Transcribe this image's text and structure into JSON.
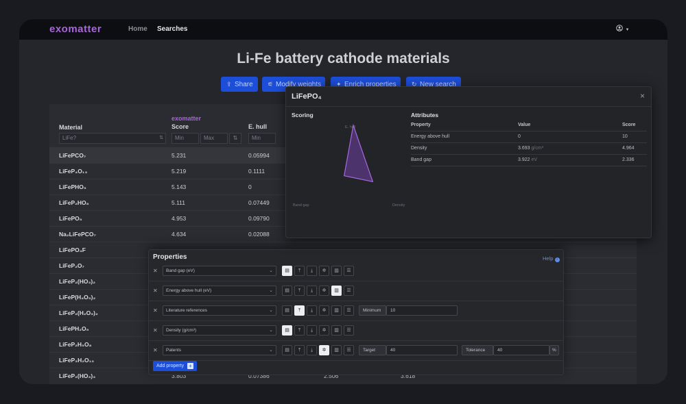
{
  "nav": {
    "logo": "exomatter",
    "links": [
      "Home",
      "Searches"
    ],
    "user_icon": "user-circle-icon",
    "user_caret": "▾"
  },
  "page": {
    "title": "Li-Fe battery cathode materials"
  },
  "toolbar": {
    "buttons": [
      {
        "label": "Share",
        "icon": "share-icon"
      },
      {
        "label": "Modify weights",
        "icon": "sliders-icon"
      },
      {
        "label": "Enrich properties",
        "icon": "sparkle-icon"
      },
      {
        "label": "New search",
        "icon": "refresh-icon"
      }
    ]
  },
  "table": {
    "headers": {
      "material": "Material",
      "score_brand": "exomatter",
      "score": "Score",
      "ehull": "E. hull"
    },
    "filters": {
      "material_placeholder": "LiFe?",
      "min": "Min",
      "max": "Max"
    },
    "rows": [
      {
        "material": "LiFePCO₇",
        "score": "5.231",
        "ehull": "0.05994"
      },
      {
        "material": "LiFeP₄O₁₃",
        "score": "5.219",
        "ehull": "0.1111"
      },
      {
        "material": "LiFePHO₅",
        "score": "5.143",
        "ehull": "0"
      },
      {
        "material": "LiFeP₂HO₈",
        "score": "5.111",
        "ehull": "0.07449"
      },
      {
        "material": "LiFePO₅",
        "score": "4.953",
        "ehull": "0.09790"
      },
      {
        "material": "Na₂LiFePCO₇",
        "score": "4.634",
        "ehull": "0.02088"
      },
      {
        "material": "LiFePO₄F",
        "score": "",
        "ehull": ""
      },
      {
        "material": "LiFeP₂O₇",
        "score": "",
        "ehull": ""
      },
      {
        "material": "LiFeP₂(HO₃)₂",
        "score": "",
        "ehull": ""
      },
      {
        "material": "LiFeP(H₄O₅)₂",
        "score": "",
        "ehull": ""
      },
      {
        "material": "LiFeP₂(H₂O₅)₂",
        "score": "",
        "ehull": ""
      },
      {
        "material": "LiFePH₂O₅",
        "score": "",
        "ehull": ""
      },
      {
        "material": "LiFeP₂H₅O₈",
        "score": "",
        "ehull": ""
      },
      {
        "material": "LiFeP₃H₂O₁₃",
        "score": "",
        "ehull": ""
      },
      {
        "material": "LiFeP₂(HO₃)₃",
        "score": "3.803",
        "ehull": "0.07386",
        "col4": "2.506",
        "col5": "3.618"
      }
    ]
  },
  "modal": {
    "title": "LiFePO₄",
    "close": "×",
    "scoring_title": "Scoring",
    "attributes_title": "Attributes",
    "radar_labels": {
      "top": "E. hull",
      "left": "Band gap",
      "right": "Density"
    },
    "radar_values": {
      "energy_above_hull": 10,
      "density": 4.964,
      "band_gap": 2.336
    },
    "radar_max": 10,
    "attr_headers": {
      "property": "Property",
      "value": "Value",
      "score": "Score"
    },
    "attributes": [
      {
        "property": "Energy above hull",
        "value": "0",
        "unit": "",
        "score": "10"
      },
      {
        "property": "Density",
        "value": "3.693",
        "unit": "g/cm³",
        "score": "4.964"
      },
      {
        "property": "Band gap",
        "value": "3.922",
        "unit": "eV",
        "score": "2.336"
      }
    ]
  },
  "properties": {
    "title": "Properties",
    "help": "Help",
    "help_icon": "info-icon",
    "add_label": "Add property",
    "add_icon": "plus-icon",
    "icon_set": [
      {
        "name": "document-icon",
        "glyph": "▤"
      },
      {
        "name": "maximize-icon",
        "glyph": "⤒"
      },
      {
        "name": "minimize-icon",
        "glyph": "⤓"
      },
      {
        "name": "target-icon",
        "glyph": "✲"
      },
      {
        "name": "file-icon",
        "glyph": "▥"
      },
      {
        "name": "list-icon",
        "glyph": "☰"
      }
    ],
    "rows": [
      {
        "name": "Band gap (eV)",
        "active": 0
      },
      {
        "name": "Energy above hull (eV)",
        "active": 4
      },
      {
        "name": "Literature references",
        "active": 1,
        "param_label": "Minimum",
        "param_value": "10"
      },
      {
        "name": "Density (g/cm³)",
        "active": 0
      },
      {
        "name": "Patents",
        "active": 3,
        "param_label": "Target",
        "param_value": "40",
        "param2_label": "Tolerance",
        "param2_value": "40",
        "param2_suffix": "%"
      }
    ]
  }
}
